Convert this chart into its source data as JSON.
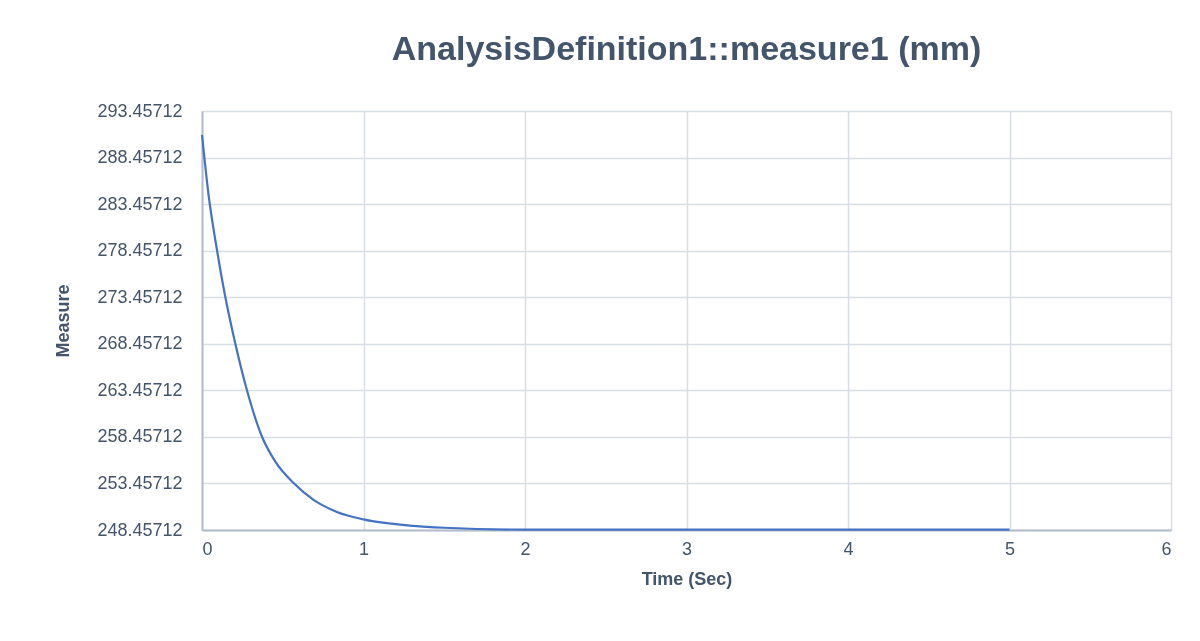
{
  "chart_data": {
    "type": "line",
    "title": "AnalysisDefinition1::measure1 (mm)",
    "xlabel": "Time (Sec)",
    "ylabel": "Measure",
    "x": [
      0,
      0.041,
      0.093,
      0.144,
      0.206,
      0.278,
      0.371,
      0.454,
      0.567,
      0.691,
      0.835,
      1.0,
      1.31,
      1.5,
      2,
      2.5,
      3,
      4,
      5
    ],
    "series": [
      {
        "color": "#4472c4",
        "values": [
          290.9,
          284.4,
          278.5,
          273.5,
          268.5,
          263.5,
          258.5,
          255.8,
          253.5,
          251.7,
          250.4,
          249.6,
          248.9,
          248.7,
          248.5,
          248.5,
          248.5,
          248.5,
          248.5
        ]
      }
    ],
    "xlim": [
      0,
      6
    ],
    "xticks": [
      0,
      1,
      2,
      3,
      4,
      5,
      6
    ],
    "ylim": [
      248.45712,
      293.45712
    ],
    "yticks": [
      248.45712,
      253.45712,
      258.45712,
      263.45712,
      268.45712,
      273.45712,
      278.45712,
      283.45712,
      288.45712,
      293.45712
    ],
    "grid": true,
    "legend": false,
    "marker": "none",
    "line_style": "solid"
  }
}
